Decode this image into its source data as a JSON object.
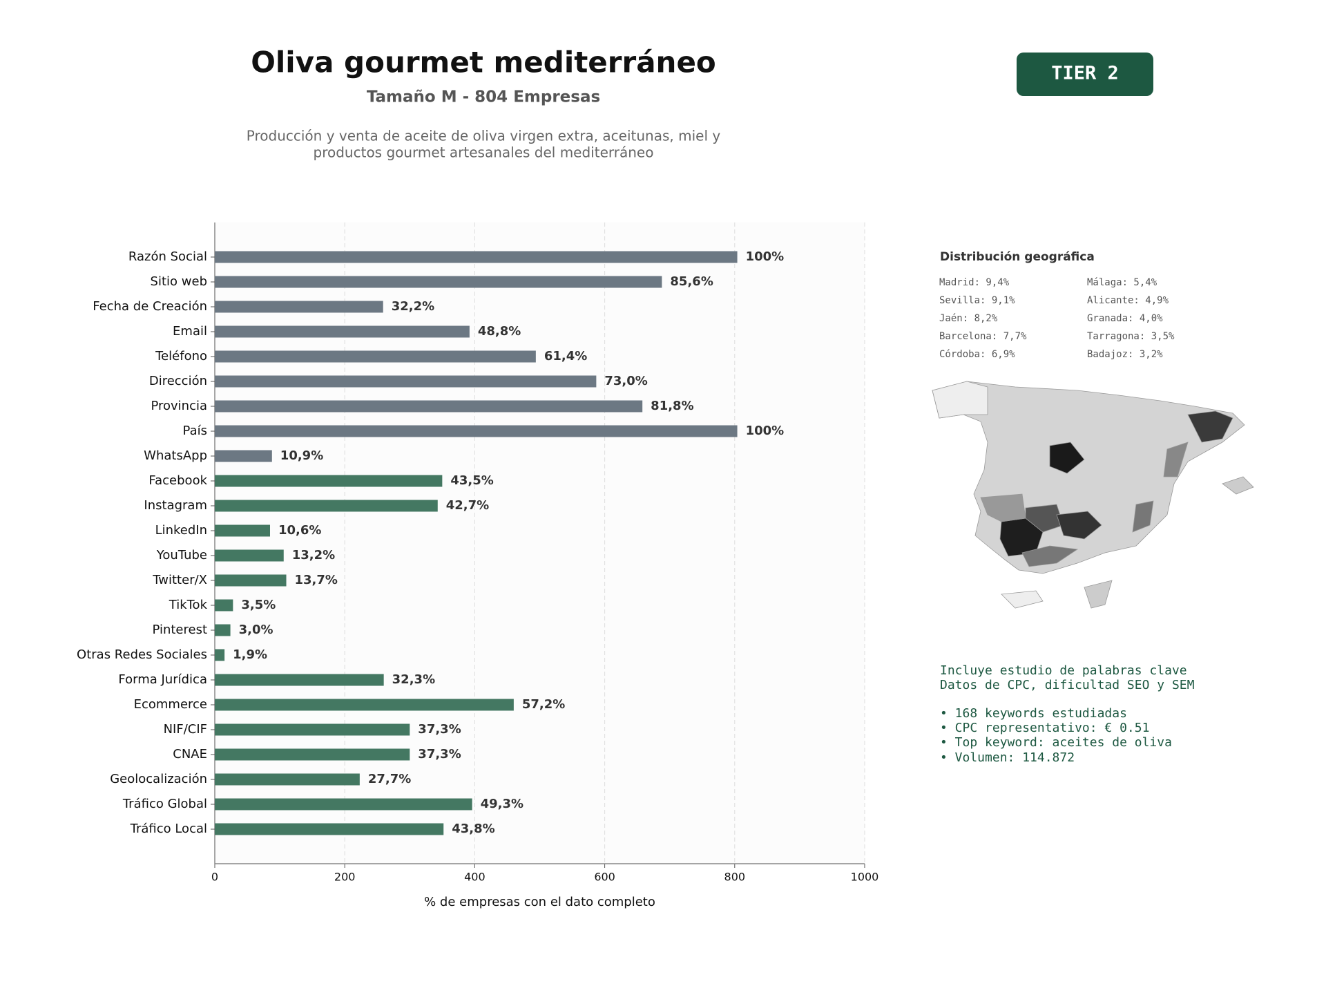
{
  "chart_data": {
    "type": "bar",
    "orientation": "horizontal",
    "title": "Oliva gourmet mediterráneo",
    "subtitle": "Tamaño M - 804 Empresas",
    "description": [
      "Producción y venta de aceite de oliva virgen extra, aceitunas, miel y",
      "productos gourmet artesanales del mediterráneo"
    ],
    "xlabel": "% de empresas con el dato completo",
    "categories": [
      "Razón Social",
      "Sitio web",
      "Fecha de Creación",
      "Email",
      "Teléfono",
      "Dirección",
      "Provincia",
      "País",
      "WhatsApp",
      "Facebook",
      "Instagram",
      "LinkedIn",
      "YouTube",
      "Twitter/X",
      "TikTok",
      "Pinterest",
      "Otras Redes Sociales",
      "Forma Jurídica",
      "Ecommerce",
      "NIF/CIF",
      "CNAE",
      "Geolocalización",
      "Tráfico Global",
      "Tráfico Local"
    ],
    "values": [
      804,
      688,
      259,
      392,
      494,
      587,
      658,
      804,
      88,
      350,
      343,
      85,
      106,
      110,
      28,
      24,
      15,
      260,
      460,
      300,
      300,
      223,
      396,
      352
    ],
    "value_labels": [
      "100%",
      "85,6%",
      "32,2%",
      "48,8%",
      "61,4%",
      "73,0%",
      "81,8%",
      "100%",
      "10,9%",
      "43,5%",
      "42,7%",
      "10,6%",
      "13,2%",
      "13,7%",
      "3,5%",
      "3,0%",
      "1,9%",
      "32,3%",
      "57,2%",
      "37,3%",
      "37,3%",
      "27,7%",
      "49,3%",
      "43,8%"
    ],
    "colors": [
      "#6c7883",
      "#6c7883",
      "#6c7883",
      "#6c7883",
      "#6c7883",
      "#6c7883",
      "#6c7883",
      "#6c7883",
      "#6c7883",
      "#447862",
      "#447862",
      "#447862",
      "#447862",
      "#447862",
      "#447862",
      "#447862",
      "#447862",
      "#447862",
      "#447862",
      "#447862",
      "#447862",
      "#447862",
      "#447862",
      "#447862"
    ],
    "xlim": [
      0,
      1000
    ],
    "xticks": [
      0,
      200,
      400,
      600,
      800,
      1000
    ],
    "grid": true
  },
  "badge": "TIER 2",
  "geo_panel": {
    "title": "Distribución geográfica",
    "items": [
      "Madrid: 9,4%",
      "Sevilla: 9,1%",
      "Jaén: 8,2%",
      "Barcelona: 7,7%",
      "Córdoba: 6,9%",
      "Málaga: 5,4%",
      "Alicante: 4,9%",
      "Granada: 4,0%",
      "Tarragona: 3,5%",
      "Badajoz: 3,2%"
    ]
  },
  "keywords_panel": {
    "lines": [
      "Incluye estudio de palabras clave",
      "Datos de CPC, dificultad SEO y SEM",
      "• 168 keywords estudiadas",
      "• CPC representativo: € 0.51",
      "• Top keyword: aceites de oliva",
      "• Volumen: 114.872"
    ]
  }
}
